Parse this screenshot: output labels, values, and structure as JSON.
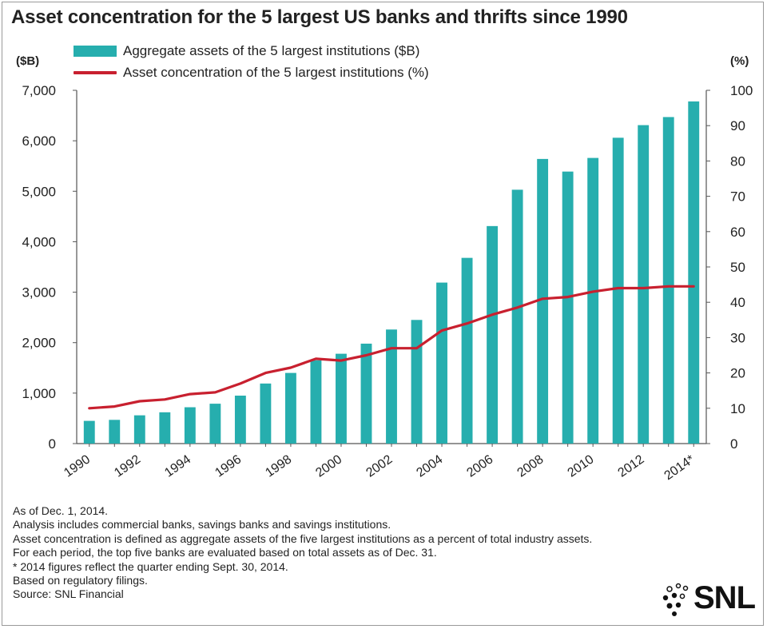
{
  "title": "Asset concentration for the 5 largest US banks and thrifts since 1990",
  "colors": {
    "bar": "#26aeae",
    "line": "#c8202f",
    "axis": "#555555"
  },
  "logo": {
    "text": "SNL"
  },
  "notes": [
    "As of Dec. 1, 2014.",
    "Analysis includes commercial banks, savings banks and savings institutions.",
    "Asset concentration is defined as aggregate assets of the five largest institutions as a percent of total industry assets.",
    "For each period, the top five banks are evaluated based on total assets as of Dec. 31.",
    "* 2014 figures reflect the quarter ending Sept. 30, 2014.",
    "Based on regulatory filings.",
    "Source: SNL Financial"
  ],
  "chart_data": {
    "type": "bar",
    "title": "Asset concentration for the 5 largest US banks and thrifts since 1990",
    "categories": [
      "1990",
      "1991",
      "1992",
      "1993",
      "1994",
      "1995",
      "1996",
      "1997",
      "1998",
      "1999",
      "2000",
      "2001",
      "2002",
      "2003",
      "2004",
      "2005",
      "2006",
      "2007",
      "2008",
      "2009",
      "2010",
      "2011",
      "2012",
      "2013",
      "2014*"
    ],
    "x_tick_labels": [
      "1990",
      "",
      "1992",
      "",
      "1994",
      "",
      "1996",
      "",
      "1998",
      "",
      "2000",
      "",
      "2002",
      "",
      "2004",
      "",
      "2006",
      "",
      "2008",
      "",
      "2010",
      "",
      "2012",
      "",
      "2014*"
    ],
    "series": [
      {
        "name": "Aggregate assets of the 5 largest institutions ($B)",
        "type": "bar",
        "axis": "left",
        "values": [
          450,
          470,
          560,
          620,
          720,
          790,
          950,
          1190,
          1400,
          1650,
          1780,
          1980,
          2260,
          2450,
          3190,
          3680,
          4310,
          5030,
          5640,
          5390,
          5660,
          6060,
          6310,
          6470,
          6780
        ]
      },
      {
        "name": "Asset concentration of the 5 largest institutions (%)",
        "type": "line",
        "axis": "right",
        "values": [
          10,
          10.5,
          12,
          12.5,
          14,
          14.5,
          17,
          20,
          21.5,
          24,
          23.5,
          25,
          27,
          27,
          32,
          34,
          36.5,
          38.5,
          41,
          41.5,
          43,
          44,
          44,
          44.5,
          44.5
        ]
      }
    ],
    "y_left": {
      "label": "($B)",
      "min": 0,
      "max": 7000,
      "ticks": [
        "0",
        "1,000",
        "2,000",
        "3,000",
        "4,000",
        "5,000",
        "6,000",
        "7,000"
      ]
    },
    "y_right": {
      "label": "(%)",
      "min": 0,
      "max": 100,
      "ticks": [
        "0",
        "10",
        "20",
        "30",
        "40",
        "50",
        "60",
        "70",
        "80",
        "90",
        "100"
      ]
    },
    "legend": "top-left",
    "grid": false
  }
}
